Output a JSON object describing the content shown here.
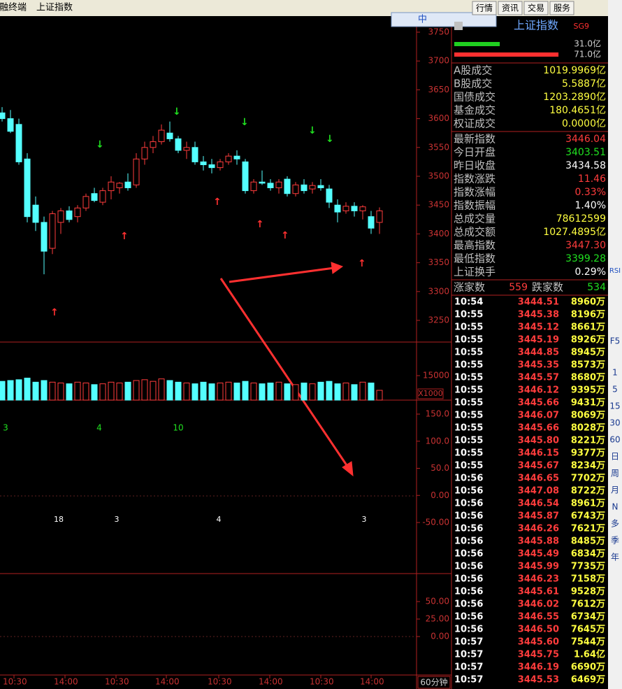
{
  "window": {
    "title": "金融终端",
    "tab": "上证指数",
    "menu": [
      "行情",
      "资讯",
      "交易",
      "服务"
    ]
  },
  "ime_bar": "中",
  "chart": {
    "price_ticks": [
      3750,
      3700,
      3650,
      3600,
      3550,
      3500,
      3450,
      3400,
      3350,
      3300,
      3250
    ],
    "candles": [
      [
        3610,
        3620,
        3595,
        3600
      ],
      [
        3600,
        3615,
        3575,
        3578
      ],
      [
        3590,
        3600,
        3520,
        3525
      ],
      [
        3530,
        3540,
        3420,
        3430
      ],
      [
        3450,
        3465,
        3405,
        3420
      ],
      [
        3420,
        3430,
        3330,
        3370
      ],
      [
        3375,
        3440,
        3365,
        3435
      ],
      [
        3420,
        3445,
        3400,
        3440
      ],
      [
        3440,
        3448,
        3420,
        3425
      ],
      [
        3430,
        3450,
        3420,
        3445
      ],
      [
        3445,
        3470,
        3440,
        3465
      ],
      [
        3470,
        3480,
        3455,
        3458
      ],
      [
        3455,
        3480,
        3450,
        3475
      ],
      [
        3475,
        3500,
        3460,
        3490
      ],
      [
        3480,
        3490,
        3470,
        3488
      ],
      [
        3490,
        3505,
        3475,
        3480
      ],
      [
        3485,
        3540,
        3480,
        3530
      ],
      [
        3530,
        3560,
        3520,
        3550
      ],
      [
        3550,
        3570,
        3540,
        3560
      ],
      [
        3560,
        3590,
        3555,
        3580
      ],
      [
        3575,
        3595,
        3560,
        3565
      ],
      [
        3565,
        3570,
        3540,
        3545
      ],
      [
        3545,
        3560,
        3530,
        3550
      ],
      [
        3550,
        3560,
        3520,
        3525
      ],
      [
        3525,
        3535,
        3510,
        3520
      ],
      [
        3520,
        3530,
        3505,
        3515
      ],
      [
        3515,
        3530,
        3510,
        3525
      ],
      [
        3525,
        3540,
        3520,
        3535
      ],
      [
        3535,
        3545,
        3520,
        3530
      ],
      [
        3525,
        3530,
        3470,
        3475
      ],
      [
        3475,
        3495,
        3470,
        3490
      ],
      [
        3490,
        3510,
        3485,
        3488
      ],
      [
        3488,
        3495,
        3475,
        3480
      ],
      [
        3480,
        3495,
        3470,
        3490
      ],
      [
        3495,
        3500,
        3465,
        3470
      ],
      [
        3470,
        3490,
        3465,
        3485
      ],
      [
        3485,
        3495,
        3470,
        3475
      ],
      [
        3478,
        3490,
        3470,
        3484
      ],
      [
        3484,
        3495,
        3475,
        3480
      ],
      [
        3478,
        3485,
        3445,
        3455
      ],
      [
        3450,
        3460,
        3420,
        3438
      ],
      [
        3440,
        3455,
        3435,
        3448
      ],
      [
        3448,
        3455,
        3430,
        3440
      ],
      [
        3440,
        3450,
        3425,
        3447
      ],
      [
        3430,
        3440,
        3400,
        3410
      ],
      [
        3420,
        3446,
        3400,
        3440
      ]
    ],
    "volume_ticks": [
      15000
    ],
    "volume_unit": "X1000",
    "volumes": [
      11500,
      12000,
      12500,
      13500,
      11000,
      12000,
      11000,
      10500,
      10000,
      11000,
      10500,
      9500,
      10000,
      11000,
      10500,
      11000,
      12000,
      12500,
      11500,
      13000,
      12000,
      11000,
      10500,
      10000,
      11000,
      10000,
      10500,
      11000,
      10500,
      11500,
      10500,
      10000,
      10500,
      11000,
      10000,
      9500,
      10500,
      10000,
      11000,
      11500,
      10000,
      10500,
      9500,
      11000,
      10500,
      6000
    ],
    "indicator_ticks": [
      {
        "value": 150,
        "label": "150.0"
      },
      {
        "value": 100,
        "label": "100.0"
      },
      {
        "value": 50,
        "label": "50.0"
      },
      {
        "value": 0,
        "label": "0.00"
      },
      {
        "value": -50,
        "label": "-50.00"
      }
    ],
    "macd_ticks": [
      {
        "value": 50,
        "label": "50.00"
      },
      {
        "value": 25,
        "label": "25.00"
      },
      {
        "value": 0,
        "label": "0.00"
      }
    ],
    "time_labels": [
      "10:30",
      "14:00",
      "10:30",
      "14:00",
      "10:30",
      "14:00",
      "10:30",
      "14:00"
    ],
    "period": "60分钟",
    "signal_top": [
      "3",
      "4",
      "10"
    ],
    "signal_bottom": [
      "18",
      "3",
      "4",
      "3"
    ]
  },
  "quote": {
    "name": "上证指数",
    "flag": "SG9",
    "bars": [
      {
        "label": "31.0亿",
        "value": 31.0
      },
      {
        "label": "71.0亿",
        "value": 71.0
      }
    ],
    "stats": [
      [
        "A股成交",
        "1019.9969亿"
      ],
      [
        "B股成交",
        "5.5887亿"
      ],
      [
        "国债成交",
        "1203.2890亿"
      ],
      [
        "基金成交",
        "180.4651亿"
      ],
      [
        "权证成交",
        "0.0000亿"
      ],
      [
        "最新指数",
        "3446.04"
      ],
      [
        "今日开盘",
        "3403.51"
      ],
      [
        "昨日收盘",
        "3434.58"
      ],
      [
        "指数涨跌",
        "11.46"
      ],
      [
        "指数涨幅",
        "0.33%"
      ],
      [
        "指数振幅",
        "1.40%"
      ],
      [
        "总成交量",
        "78612599"
      ],
      [
        "总成交额",
        "1027.4895亿"
      ],
      [
        "最高指数",
        "3447.30"
      ],
      [
        "最低指数",
        "3399.28"
      ],
      [
        "上证换手",
        "0.29%"
      ]
    ],
    "breadth": {
      "up_label": "涨家数",
      "up": "559",
      "down_label": "跌家数",
      "down": "534"
    },
    "ticks": [
      [
        "10:54",
        "3444.51",
        "8960万"
      ],
      [
        "10:55",
        "3445.38",
        "8196万"
      ],
      [
        "10:55",
        "3445.12",
        "8661万"
      ],
      [
        "10:55",
        "3445.19",
        "8926万"
      ],
      [
        "10:55",
        "3444.85",
        "8945万"
      ],
      [
        "10:55",
        "3445.35",
        "8573万"
      ],
      [
        "10:55",
        "3445.57",
        "8680万"
      ],
      [
        "10:55",
        "3446.12",
        "9395万"
      ],
      [
        "10:55",
        "3445.66",
        "9431万"
      ],
      [
        "10:55",
        "3446.07",
        "8069万"
      ],
      [
        "10:55",
        "3445.66",
        "8028万"
      ],
      [
        "10:55",
        "3445.80",
        "8221万"
      ],
      [
        "10:55",
        "3446.15",
        "9377万"
      ],
      [
        "10:55",
        "3445.67",
        "8234万"
      ],
      [
        "10:56",
        "3446.65",
        "7702万"
      ],
      [
        "10:56",
        "3447.08",
        "8722万"
      ],
      [
        "10:56",
        "3446.54",
        "8961万"
      ],
      [
        "10:56",
        "3445.87",
        "6743万"
      ],
      [
        "10:56",
        "3446.26",
        "7621万"
      ],
      [
        "10:56",
        "3445.88",
        "8485万"
      ],
      [
        "10:56",
        "3445.49",
        "6834万"
      ],
      [
        "10:56",
        "3445.99",
        "7735万"
      ],
      [
        "10:56",
        "3446.23",
        "7158万"
      ],
      [
        "10:56",
        "3445.61",
        "9528万"
      ],
      [
        "10:56",
        "3446.02",
        "7612万"
      ],
      [
        "10:56",
        "3446.55",
        "6734万"
      ],
      [
        "10:56",
        "3446.50",
        "7645万"
      ],
      [
        "10:57",
        "3445.60",
        "7544万"
      ],
      [
        "10:57",
        "3445.75",
        "1.64亿"
      ],
      [
        "10:57",
        "3446.19",
        "6690万"
      ],
      [
        "10:57",
        "3445.53",
        "6469万"
      ]
    ]
  },
  "sidebar": [
    "RSI",
    "F5",
    "1",
    "5",
    "15",
    "30",
    "60",
    "日",
    "周",
    "月",
    "N",
    "多",
    "季",
    "年"
  ]
}
